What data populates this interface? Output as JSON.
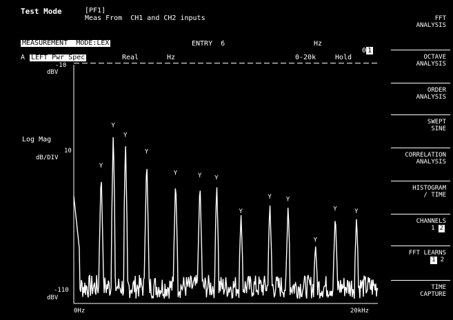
{
  "header": {
    "mode_label": "Test Mode",
    "key_label": "[PF1]",
    "description": "Meas From  CH1 and CH2 inputs"
  },
  "status_bar": {
    "measurement_mode": "MEASUREMENT  MODE:LEX",
    "center_field": "ENTRY  6",
    "right_field": "Hz",
    "box_values": [
      "0",
      "1"
    ]
  },
  "trace_bar": {
    "selector": "A",
    "trace_name": "LEFT Pwr Spec",
    "channel": "Real",
    "units": "Hz",
    "range": "0-20k",
    "status": "Hold"
  },
  "y_axis": {
    "top_value": "-10",
    "top_unit": "dBV",
    "mid_label": "Log Mag",
    "mid_unit": "dB/DIV",
    "mid_value": "10",
    "bottom_value": "-110",
    "bottom_unit": "dBV"
  },
  "x_axis": {
    "start_label": "0Hz",
    "stop_label": "20kHz"
  },
  "softkeys": [
    {
      "lines": [
        "FFT",
        "ANALYSIS"
      ]
    },
    {
      "lines": [
        "OCTAVE",
        "ANALYSIS"
      ]
    },
    {
      "lines": [
        "ORDER",
        "ANALYSIS"
      ]
    },
    {
      "lines": [
        "SWEPT",
        "SINE"
      ]
    },
    {
      "lines": [
        "CORRELATION",
        "ANALYSIS"
      ]
    },
    {
      "lines": [
        "HISTOGRAM",
        "/ TIME"
      ]
    },
    {
      "lines": [
        "CHANNELS"
      ],
      "options": [
        "1",
        "2"
      ],
      "selected": 1
    },
    {
      "lines": [
        "FFT LEARNS"
      ],
      "options": [
        "1",
        "2"
      ],
      "selected": 0
    },
    {
      "lines": [
        "TIME",
        "CAPTURE"
      ]
    }
  ],
  "spectrum_peaks": [
    {
      "x": 1.8,
      "y": 0.56
    },
    {
      "x": 2.6,
      "y": 0.73
    },
    {
      "x": 3.4,
      "y": 0.69
    },
    {
      "x": 4.8,
      "y": 0.62
    },
    {
      "x": 6.7,
      "y": 0.53
    },
    {
      "x": 8.3,
      "y": 0.52
    },
    {
      "x": 9.4,
      "y": 0.51
    },
    {
      "x": 11.0,
      "y": 0.37
    },
    {
      "x": 12.9,
      "y": 0.43
    },
    {
      "x": 14.1,
      "y": 0.42
    },
    {
      "x": 15.9,
      "y": 0.25
    },
    {
      "x": 17.2,
      "y": 0.38
    },
    {
      "x": 18.6,
      "y": 0.37
    }
  ],
  "colors": {
    "background": "#000000",
    "foreground": "#ffffff"
  }
}
